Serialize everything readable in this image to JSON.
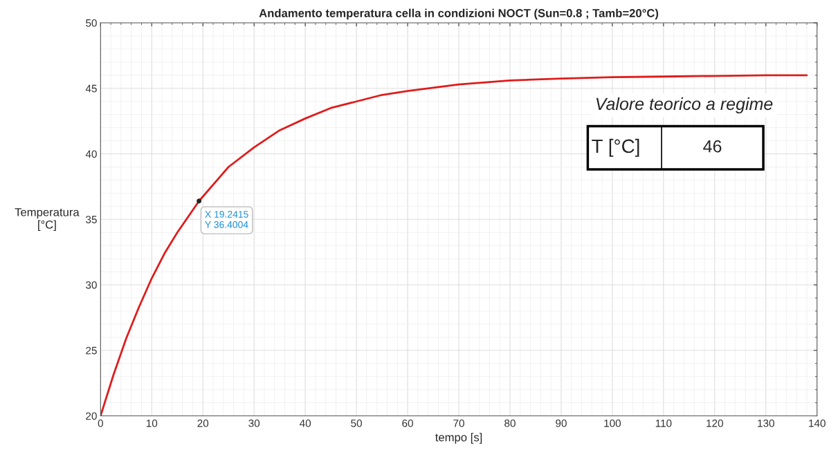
{
  "chart_data": {
    "type": "line",
    "title": "Andamento temperatura cella in condizioni NOCT (Sun=0.8 ; Tamb=20°C)",
    "xlabel": "tempo [s]",
    "ylabel": "Temperatura\n[°C]",
    "x": [
      0,
      2.5,
      5,
      7.5,
      10,
      12.5,
      15,
      19.2415,
      25,
      30,
      35,
      40,
      45,
      50,
      55,
      60,
      70,
      80,
      90,
      100,
      110,
      120,
      130,
      138
    ],
    "series": [
      {
        "color": "#e01b1b",
        "values": [
          20.0,
          23.1,
          25.9,
          28.3,
          30.5,
          32.4,
          34.0,
          36.4,
          39.0,
          40.5,
          41.8,
          42.7,
          43.5,
          44.0,
          44.5,
          44.8,
          45.3,
          45.6,
          45.75,
          45.85,
          45.9,
          45.95,
          46.0,
          46.0
        ]
      }
    ],
    "xlim": [
      0,
      140
    ],
    "ylim": [
      20,
      50
    ],
    "xticks": [
      0,
      10,
      20,
      30,
      40,
      50,
      60,
      70,
      80,
      90,
      100,
      110,
      120,
      130,
      140
    ],
    "yticks": [
      20,
      25,
      30,
      35,
      40,
      45,
      50
    ],
    "grid": true,
    "marker": "none",
    "line_style": "solid",
    "annotations": [
      {
        "text": "X 19.2415\nY 36.4004",
        "x": 19.2415,
        "y": 36.4004
      },
      "Valore teorico a regime",
      "T [°C]",
      "46"
    ]
  }
}
